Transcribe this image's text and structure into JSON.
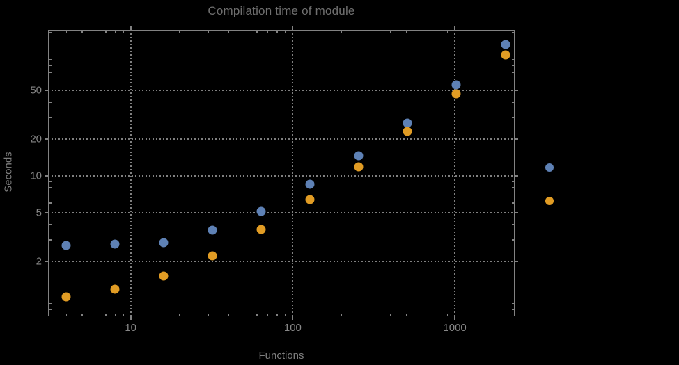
{
  "window": {
    "background_color": "#000000"
  },
  "chart_data": {
    "type": "scatter",
    "title": "Compilation time of module",
    "xlabel": "Functions",
    "ylabel": "Seconds",
    "x_scale": "log",
    "y_scale": "log",
    "grid": "dotted",
    "x_range": [
      3.09,
      2340
    ],
    "y_range": [
      0.705,
      157
    ],
    "x_ticks": [
      10,
      100,
      1000
    ],
    "y_ticks": [
      2,
      5,
      10,
      20,
      50
    ],
    "x_minor_ticks": [
      4,
      5,
      6,
      7,
      8,
      9,
      20,
      30,
      40,
      50,
      60,
      70,
      80,
      90,
      200,
      300,
      400,
      500,
      600,
      700,
      800,
      900,
      2000
    ],
    "y_minor_ticks": [
      0.8,
      0.9,
      1,
      3,
      4,
      6,
      7,
      8,
      9,
      30,
      40,
      60,
      70,
      80,
      90,
      100,
      150
    ],
    "x": [
      4,
      8,
      16,
      32,
      64,
      128,
      256,
      512,
      1024,
      2048
    ],
    "series": [
      {
        "name": "series-blue",
        "color": "#5E81B5",
        "values": [
          2.7,
          2.75,
          2.85,
          3.6,
          5.1,
          8.5,
          14.6,
          27,
          56,
          119
        ]
      },
      {
        "name": "series-orange",
        "color": "#E19C24",
        "values": [
          1.02,
          1.18,
          1.5,
          2.2,
          3.65,
          6.4,
          11.9,
          23,
          47,
          98
        ]
      }
    ],
    "legend": {
      "labels_visible": false,
      "markers": [
        {
          "name": "legend-marker-blue",
          "color": "#5E81B5"
        },
        {
          "name": "legend-marker-orange",
          "color": "#E19C24"
        }
      ]
    },
    "colors": {
      "frame": "#828282",
      "gridline": "#808080",
      "tick_text": "#878787",
      "title_text": "#6f6f6f"
    }
  }
}
